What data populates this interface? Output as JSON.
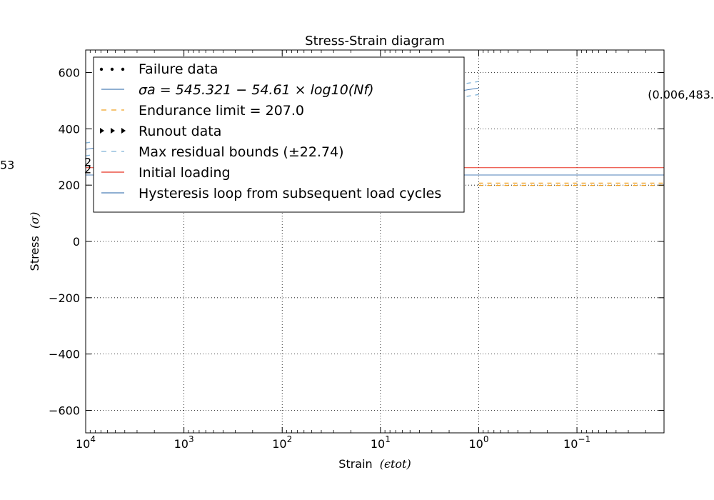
{
  "chart_data": {
    "type": "line",
    "title": "Stress-Strain diagram",
    "xlabel_text": "Strain",
    "xlabel_math": "(ϵtot)",
    "ylabel_text": "Stress",
    "ylabel_math": "(σ)",
    "x_scale": "log",
    "x_reversed": true,
    "xlim": [
      10000,
      0.013
    ],
    "ylim": [
      -680,
      680
    ],
    "grid": true,
    "legend_position": "upper-left",
    "x_ticks": [
      {
        "value": 10000,
        "base": "10",
        "exp": "4"
      },
      {
        "value": 1000,
        "base": "10",
        "exp": "3"
      },
      {
        "value": 100,
        "base": "10",
        "exp": "2"
      },
      {
        "value": 10,
        "base": "10",
        "exp": "1"
      },
      {
        "value": 1,
        "base": "10",
        "exp": "0"
      },
      {
        "value": 0.1,
        "base": "10",
        "exp": "−1"
      }
    ],
    "y_ticks": [
      {
        "value": 600,
        "label": "600"
      },
      {
        "value": 400,
        "label": "400"
      },
      {
        "value": 200,
        "label": "200"
      },
      {
        "value": 0,
        "label": "0"
      },
      {
        "value": -200,
        "label": "−200"
      },
      {
        "value": -400,
        "label": "−400"
      },
      {
        "value": -600,
        "label": "−600"
      }
    ],
    "series": [
      {
        "key": "failure",
        "name": "Failure data",
        "style": "dots",
        "color": "#000000",
        "points": []
      },
      {
        "key": "sn_curve",
        "name": "σa = 545.321 − 54.61 × log10(Nf)",
        "style": "solid",
        "color": "#4c7fb8",
        "points": [
          [
            10000,
            327
          ],
          [
            1000,
            381
          ],
          [
            100,
            436
          ],
          [
            10,
            490
          ],
          [
            1,
            545
          ]
        ]
      },
      {
        "key": "endurance",
        "name": "Endurance limit = 207.0",
        "style": "dashed",
        "color": "#f0a020",
        "points": [
          [
            1,
            207
          ],
          [
            0.013,
            207
          ]
        ]
      },
      {
        "key": "runout",
        "name": "Runout data",
        "style": "triangles",
        "color": "#000000",
        "points": []
      },
      {
        "key": "residual_upper",
        "name": "Max residual bounds (±22.74)",
        "style": "dashed",
        "color": "#7fb2d8",
        "points": [
          [
            10000,
            350
          ],
          [
            1,
            568
          ]
        ]
      },
      {
        "key": "residual_lower",
        "name": "",
        "style": "dashed",
        "color": "#7fb2d8",
        "points": [
          [
            10000,
            304
          ],
          [
            1,
            522
          ]
        ]
      },
      {
        "key": "initial",
        "name": "Initial loading",
        "style": "solid",
        "color": "#e83020",
        "points": [
          [
            10000,
            262
          ],
          [
            0.013,
            262
          ]
        ]
      },
      {
        "key": "hysteresis",
        "name": "Hysteresis loop from subsequent load cycles",
        "style": "solid",
        "color": "#4c7fb8",
        "points": [
          [
            10000,
            236
          ],
          [
            0.013,
            236
          ]
        ]
      },
      {
        "key": "endurance_low",
        "name": "",
        "style": "dashed",
        "color": "#f0a020",
        "points": [
          [
            1,
            199
          ],
          [
            0.013,
            199
          ]
        ]
      }
    ],
    "legend": [
      {
        "label": "Failure data",
        "symbol": "dots",
        "color": "#000000"
      },
      {
        "label": "σa = 545.321 − 54.61 × log10(Nf)",
        "symbol": "line",
        "color": "#4c7fb8",
        "is_math": true
      },
      {
        "label": "Endurance limit = 207.0",
        "symbol": "dashed",
        "color": "#f0a020"
      },
      {
        "label": "Runout data",
        "symbol": "triangles",
        "color": "#000000"
      },
      {
        "label": "Max residual bounds (±22.74)",
        "symbol": "dashed",
        "color": "#7fb2d8"
      },
      {
        "label": "Initial loading",
        "symbol": "line",
        "color": "#e83020"
      },
      {
        "label": "Hysteresis loop from subsequent load cycles",
        "symbol": "line",
        "color": "#4c7fb8"
      }
    ],
    "annotations": [
      {
        "text": "(0.006,483.",
        "x": 0.013,
        "y": 508,
        "anchor": "end"
      },
      {
        "text": "53",
        "x": null,
        "y": 258,
        "anchor": "left-edge"
      },
      {
        "text": "2",
        "x": 10000,
        "y": 268,
        "anchor": "start"
      },
      {
        "text": "2",
        "x": 10000,
        "y": 242,
        "anchor": "start"
      }
    ]
  }
}
